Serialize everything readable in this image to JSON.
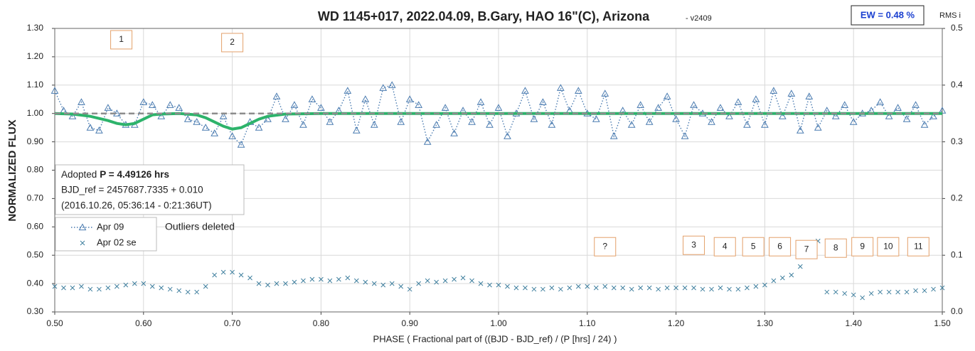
{
  "chart_data": {
    "type": "scatter",
    "title": "WD 1145+017, 2022.04.09, B.Gary, HAO 16\"(C), Arizona",
    "version": "- v2409",
    "ew_label": "EW = 0.48 %",
    "right_axis_label": "RMS i",
    "xlabel": "PHASE ( Fractional part of ((BJD - BJD_ref) / (P [hrs] / 24) )",
    "ylabel": "NORMALIZED FLUX",
    "info_box": {
      "prefix": "Adopted",
      "period": "P = 4.49126 hrs",
      "line2": "BJD_ref = 2457687.7335 + 0.010",
      "line3": "(2016.10.26, 05:36:14 - 0:21:36UT)"
    },
    "note": "Outliers deleted",
    "xlim": [
      0.5,
      1.5
    ],
    "ylim": [
      0.3,
      1.3
    ],
    "y2lim": [
      0,
      0.5
    ],
    "xticks": [
      {
        "value": 0.5,
        "label": "0.50"
      },
      {
        "value": 0.6,
        "label": "0.60"
      },
      {
        "value": 0.7,
        "label": "0.70"
      },
      {
        "value": 0.8,
        "label": "0.80"
      },
      {
        "value": 0.9,
        "label": "0.90"
      },
      {
        "value": 1.0,
        "label": "1.00"
      },
      {
        "value": 1.1,
        "label": "1.10"
      },
      {
        "value": 1.2,
        "label": "1.20"
      },
      {
        "value": 1.3,
        "label": "1.30"
      },
      {
        "value": 1.4,
        "label": "1.40"
      },
      {
        "value": 1.5,
        "label": "1.50"
      }
    ],
    "yticks": [
      {
        "value": 0.3,
        "label": "0.30"
      },
      {
        "value": 0.4,
        "label": "0.40"
      },
      {
        "value": 0.5,
        "label": "0.50"
      },
      {
        "value": 0.6,
        "label": "0.60"
      },
      {
        "value": 0.7,
        "label": "0.70"
      },
      {
        "value": 0.8,
        "label": "0.80"
      },
      {
        "value": 0.9,
        "label": "0.90"
      },
      {
        "value": 1.0,
        "label": "1.00"
      },
      {
        "value": 1.1,
        "label": "1.10"
      },
      {
        "value": 1.2,
        "label": "1.20"
      },
      {
        "value": 1.3,
        "label": "1.30"
      }
    ],
    "y2ticks": [
      {
        "value": 0,
        "label": "0.0"
      },
      0.1,
      0.2,
      0.3,
      0.4,
      0.5
    ],
    "grid": true,
    "baseline": {
      "value": 1.0,
      "color": "#8c8c8c"
    },
    "series": [
      {
        "name": "Apr 09",
        "marker": "triangle",
        "line": "dotted",
        "color": "#4a7bb0",
        "x": [
          0.5,
          0.51,
          0.52,
          0.53,
          0.54,
          0.55,
          0.56,
          0.57,
          0.58,
          0.59,
          0.6,
          0.61,
          0.62,
          0.63,
          0.64,
          0.65,
          0.66,
          0.67,
          0.68,
          0.69,
          0.7,
          0.71,
          0.72,
          0.73,
          0.74,
          0.75,
          0.76,
          0.77,
          0.78,
          0.79,
          0.8,
          0.81,
          0.82,
          0.83,
          0.84,
          0.85,
          0.86,
          0.87,
          0.88,
          0.89,
          0.9,
          0.91,
          0.92,
          0.93,
          0.94,
          0.95,
          0.96,
          0.97,
          0.98,
          0.99,
          1.0,
          1.01,
          1.02,
          1.03,
          1.04,
          1.05,
          1.06,
          1.07,
          1.08,
          1.09,
          1.1,
          1.11,
          1.12,
          1.13,
          1.14,
          1.15,
          1.16,
          1.17,
          1.18,
          1.19,
          1.2,
          1.21,
          1.22,
          1.23,
          1.24,
          1.25,
          1.26,
          1.27,
          1.28,
          1.29,
          1.3,
          1.31,
          1.32,
          1.33,
          1.34,
          1.35,
          1.36,
          1.37,
          1.38,
          1.39,
          1.4,
          1.41,
          1.42,
          1.43,
          1.44,
          1.45,
          1.46,
          1.47,
          1.48,
          1.49,
          1.5
        ],
        "values": [
          1.08,
          1.01,
          0.99,
          1.04,
          0.95,
          0.94,
          1.02,
          1.0,
          0.96,
          0.96,
          1.04,
          1.03,
          0.99,
          1.03,
          1.02,
          0.98,
          0.97,
          0.95,
          0.93,
          0.99,
          0.92,
          0.89,
          0.97,
          0.95,
          0.98,
          1.06,
          0.98,
          1.03,
          0.96,
          1.05,
          1.02,
          0.97,
          1.01,
          1.08,
          0.94,
          1.05,
          0.96,
          1.09,
          1.1,
          0.97,
          1.05,
          1.03,
          0.9,
          0.96,
          1.02,
          0.93,
          1.01,
          0.97,
          1.04,
          0.96,
          1.02,
          0.92,
          1.0,
          1.08,
          0.98,
          1.04,
          0.96,
          1.09,
          1.01,
          1.08,
          1.0,
          0.98,
          1.07,
          0.92,
          1.01,
          0.96,
          1.03,
          0.97,
          1.02,
          1.06,
          0.98,
          0.92,
          1.03,
          1.0,
          0.97,
          1.02,
          0.99,
          1.04,
          0.96,
          1.05,
          0.96,
          1.08,
          0.99,
          1.07,
          0.94,
          1.06,
          0.95,
          1.01,
          0.99,
          1.03,
          0.97,
          1.0,
          1.01,
          1.04,
          0.99,
          1.02,
          0.98,
          1.03,
          0.96,
          0.99,
          1.01
        ]
      },
      {
        "name": "Apr 02 se",
        "marker": "cross",
        "line": "none",
        "color": "#3f7f9e",
        "x": [
          0.5,
          0.51,
          0.52,
          0.53,
          0.54,
          0.55,
          0.56,
          0.57,
          0.58,
          0.59,
          0.6,
          0.61,
          0.62,
          0.63,
          0.64,
          0.65,
          0.66,
          0.67,
          0.68,
          0.69,
          0.7,
          0.71,
          0.72,
          0.73,
          0.74,
          0.75,
          0.76,
          0.77,
          0.78,
          0.79,
          0.8,
          0.81,
          0.82,
          0.83,
          0.84,
          0.85,
          0.86,
          0.87,
          0.88,
          0.89,
          0.9,
          0.91,
          0.92,
          0.93,
          0.94,
          0.95,
          0.96,
          0.97,
          0.98,
          0.99,
          1.0,
          1.01,
          1.02,
          1.03,
          1.04,
          1.05,
          1.06,
          1.07,
          1.08,
          1.09,
          1.1,
          1.11,
          1.12,
          1.13,
          1.14,
          1.15,
          1.16,
          1.17,
          1.18,
          1.19,
          1.2,
          1.21,
          1.22,
          1.23,
          1.24,
          1.25,
          1.26,
          1.27,
          1.28,
          1.29,
          1.3,
          1.31,
          1.32,
          1.33,
          1.34,
          1.35,
          1.36,
          1.37,
          1.38,
          1.39,
          1.4,
          1.41,
          1.42,
          1.43,
          1.44,
          1.45,
          1.46,
          1.47,
          1.48,
          1.49,
          1.5
        ],
        "values": [
          0.39,
          0.385,
          0.385,
          0.39,
          0.38,
          0.38,
          0.385,
          0.39,
          0.395,
          0.4,
          0.4,
          0.39,
          0.385,
          0.38,
          0.375,
          0.37,
          0.37,
          0.39,
          0.43,
          0.44,
          0.44,
          0.43,
          0.42,
          0.4,
          0.395,
          0.4,
          0.4,
          0.405,
          0.41,
          0.415,
          0.415,
          0.41,
          0.415,
          0.42,
          0.41,
          0.405,
          0.4,
          0.395,
          0.4,
          0.39,
          0.38,
          0.4,
          0.41,
          0.405,
          0.41,
          0.415,
          0.42,
          0.41,
          0.4,
          0.395,
          0.395,
          0.39,
          0.385,
          0.385,
          0.38,
          0.38,
          0.385,
          0.38,
          0.385,
          0.39,
          0.39,
          0.385,
          0.39,
          0.385,
          0.385,
          0.38,
          0.385,
          0.385,
          0.38,
          0.385,
          0.385,
          0.385,
          0.385,
          0.38,
          0.38,
          0.385,
          0.38,
          0.38,
          0.385,
          0.39,
          0.395,
          0.41,
          0.42,
          0.43,
          0.46,
          0.5,
          0.55,
          0.37,
          0.37,
          0.365,
          0.36,
          0.35,
          0.365,
          0.37,
          0.37,
          0.37,
          0.37,
          0.375,
          0.375,
          0.38,
          0.385
        ]
      },
      {
        "marker": "none",
        "line": "solid",
        "color": "#2db36b",
        "x": [
          0.5,
          0.52,
          0.54,
          0.56,
          0.57,
          0.58,
          0.59,
          0.6,
          0.61,
          0.62,
          0.64,
          0.66,
          0.67,
          0.68,
          0.69,
          0.7,
          0.71,
          0.72,
          0.73,
          0.74,
          0.76,
          0.8,
          1.5
        ],
        "values": [
          1.0,
          0.998,
          0.99,
          0.975,
          0.965,
          0.96,
          0.965,
          0.98,
          0.995,
          0.998,
          1.0,
          0.995,
          0.985,
          0.97,
          0.955,
          0.945,
          0.95,
          0.965,
          0.98,
          0.99,
          0.998,
          1.0,
          1.0
        ]
      }
    ],
    "annotations": [
      {
        "text": "1",
        "x": 0.575,
        "y": 1.26
      },
      {
        "text": "2",
        "x": 0.7,
        "y": 1.25
      },
      {
        "text": "?",
        "x": 1.12,
        "y": 0.53
      },
      {
        "text": "3",
        "x": 1.22,
        "y": 0.535
      },
      {
        "text": "4",
        "x": 1.255,
        "y": 0.53
      },
      {
        "text": "5",
        "x": 1.287,
        "y": 0.53
      },
      {
        "text": "6",
        "x": 1.317,
        "y": 0.53
      },
      {
        "text": "7",
        "x": 1.347,
        "y": 0.52
      },
      {
        "text": "8",
        "x": 1.38,
        "y": 0.525
      },
      {
        "text": "9",
        "x": 1.41,
        "y": 0.53
      },
      {
        "text": "10",
        "x": 1.439,
        "y": 0.53
      },
      {
        "text": "11",
        "x": 1.473,
        "y": 0.53
      }
    ]
  }
}
